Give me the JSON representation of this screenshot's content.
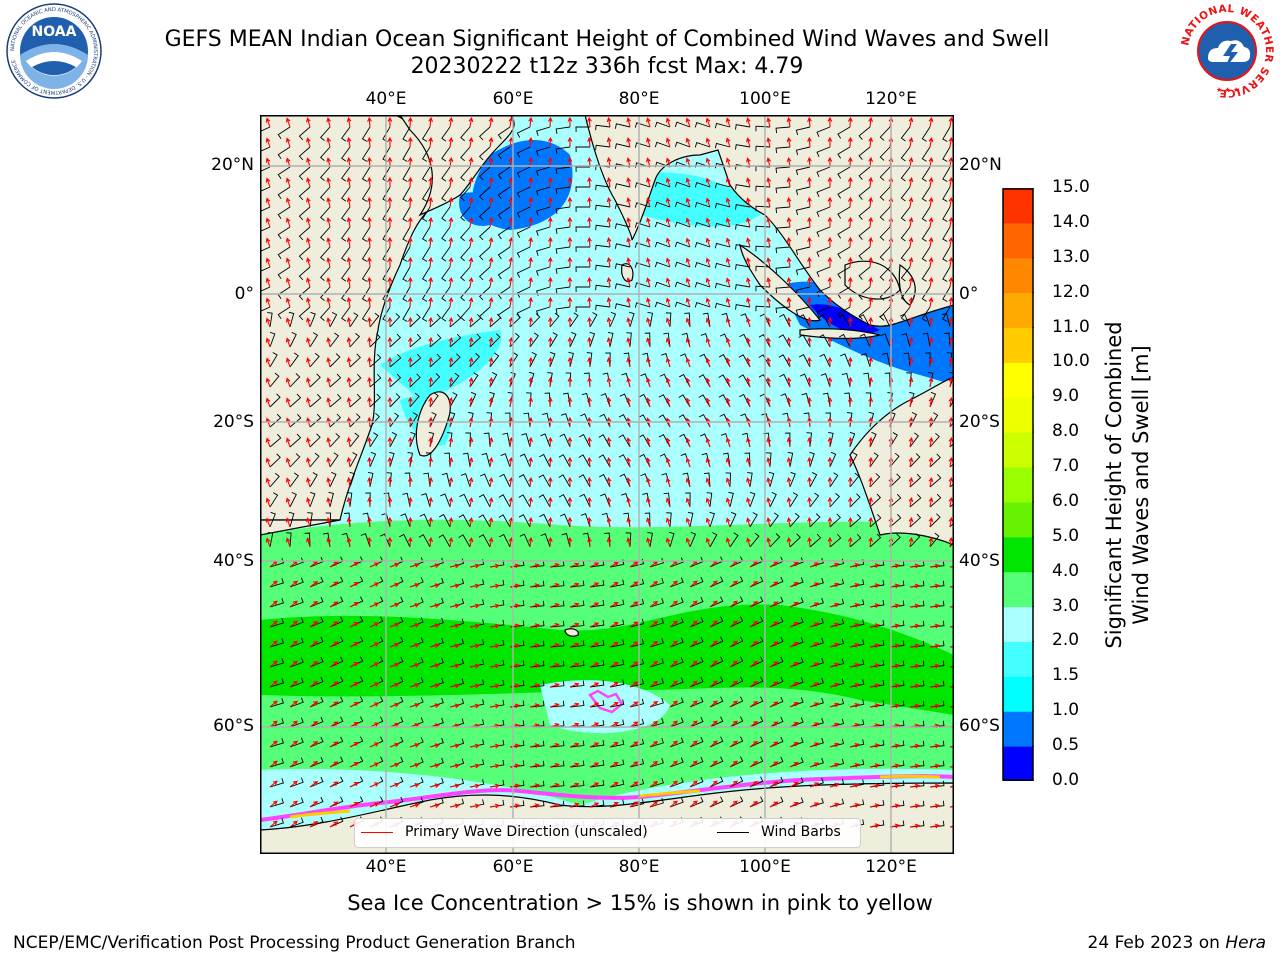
{
  "header": {
    "title_line1": "GEFS MEAN Indian Ocean Significant Height of Combined Wind Waves and Swell",
    "title_line2": "20230222 t12z 336h fcst   Max: 4.79",
    "noaa_logo_text": "NOAA",
    "noaa_logo_ring": "NATIONAL OCEANIC AND ATMOSPHERIC ADMINISTRATION · U.S. DEPARTMENT OF COMMERCE",
    "nws_logo_ring": "NATIONAL WEATHER SERVICE"
  },
  "map": {
    "lon_labels": [
      "40°E",
      "60°E",
      "80°E",
      "100°E",
      "120°E"
    ],
    "lat_labels": [
      "20°N",
      "0°",
      "20°S",
      "40°S",
      "60°S"
    ],
    "extent": {
      "lon": [
        20,
        130
      ],
      "lat": [
        -75,
        27
      ]
    },
    "colors": {
      "land": "#efeddc",
      "coast": "#000000",
      "grid": "#b0b0b0",
      "arrow": "#ff0000",
      "barb": "#000000"
    }
  },
  "colorbar": {
    "ticks": [
      "15.0",
      "14.0",
      "13.0",
      "12.0",
      "11.0",
      "10.0",
      "9.0",
      "8.0",
      "7.0",
      "6.0",
      "5.0",
      "4.0",
      "3.0",
      "2.0",
      "1.5",
      "1.0",
      "0.5",
      "0.0"
    ],
    "colors": [
      "#0000ff",
      "#0077ff",
      "#00ffff",
      "#44ffff",
      "#aaffff",
      "#55ff77",
      "#00e600",
      "#66f200",
      "#99ff00",
      "#ccff00",
      "#eeff00",
      "#ffff00",
      "#ffcc00",
      "#ffaa00",
      "#ff8800",
      "#ff6600",
      "#ff3300",
      "#ff0000"
    ],
    "label_line1": "Significant Height of Combined",
    "label_line2": "Wind Waves and Swell [m]"
  },
  "legend": {
    "wave_direction": "Primary Wave Direction (unscaled)",
    "wind_barbs": "Wind Barbs"
  },
  "note": "Sea Ice Concentration > 15% is shown in pink to yellow",
  "footer": {
    "left": "NCEP/EMC/Verification Post Processing Product Generation Branch",
    "date": "24 Feb 2023 on ",
    "machine": "Hera"
  }
}
